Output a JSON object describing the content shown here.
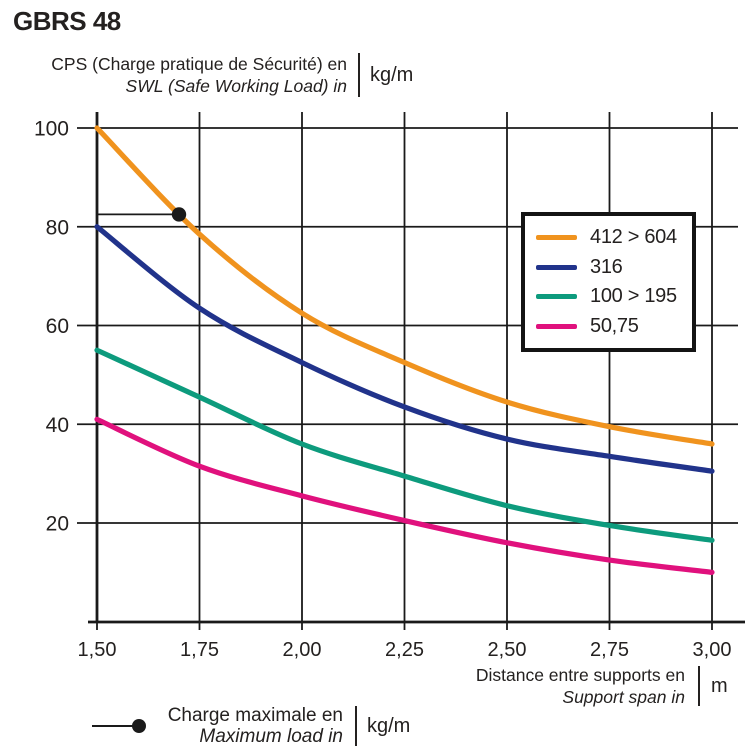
{
  "page": {
    "title": "GBRS 48"
  },
  "y_axis_header": {
    "line1": "CPS (Charge pratique de Sécurité) en",
    "line2": "SWL (Safe Working Load) in",
    "unit": "kg/m"
  },
  "x_axis_header": {
    "line1": "Distance entre supports en",
    "line2": "Support span in",
    "unit": "m"
  },
  "max_load_legend": {
    "line1": "Charge maximale en",
    "line2": "Maximum load in",
    "unit": "kg/m"
  },
  "colors": {
    "axis": "#1A1A1A",
    "grid": "#1A1A1A",
    "text": "#242120",
    "orange": "#F0931E",
    "blue": "#21338B",
    "teal": "#0D9B7D",
    "magenta": "#E0117D"
  },
  "chart_data": {
    "type": "line",
    "title": "GBRS 48",
    "xlabel": "Distance entre supports en / Support span in (m)",
    "ylabel": "CPS (Charge pratique de Sécurité) / SWL (Safe Working Load) (kg/m)",
    "x": [
      1.5,
      1.75,
      2.0,
      2.25,
      2.5,
      2.75,
      3.0
    ],
    "x_tick_labels": [
      "1,50",
      "1,75",
      "2,00",
      "2,25",
      "2,50",
      "2,75",
      "3,00"
    ],
    "y_ticks": [
      20,
      40,
      60,
      80,
      100
    ],
    "xlim": [
      1.5,
      3.0
    ],
    "ylim": [
      0,
      103
    ],
    "grid": true,
    "legend_position": "upper right",
    "series": [
      {
        "name": "412 > 604",
        "color": "#F0931E",
        "values": [
          100,
          78.5,
          62.5,
          52.5,
          44.5,
          39.5,
          36
        ]
      },
      {
        "name": "316",
        "color": "#21338B",
        "values": [
          80,
          63.5,
          52.5,
          43.5,
          37,
          33.5,
          30.5
        ]
      },
      {
        "name": "100 > 195",
        "color": "#0D9B7D",
        "values": [
          55,
          45.5,
          36,
          29.5,
          23.5,
          19.5,
          16.5
        ]
      },
      {
        "name": "50,75",
        "color": "#E0117D",
        "values": [
          41,
          31.5,
          25.5,
          20.5,
          16,
          12.5,
          10
        ]
      }
    ],
    "marker": {
      "x": 1.7,
      "y": 82.5,
      "series": "412 > 604",
      "label": "Charge maximale / Maximum load"
    }
  }
}
